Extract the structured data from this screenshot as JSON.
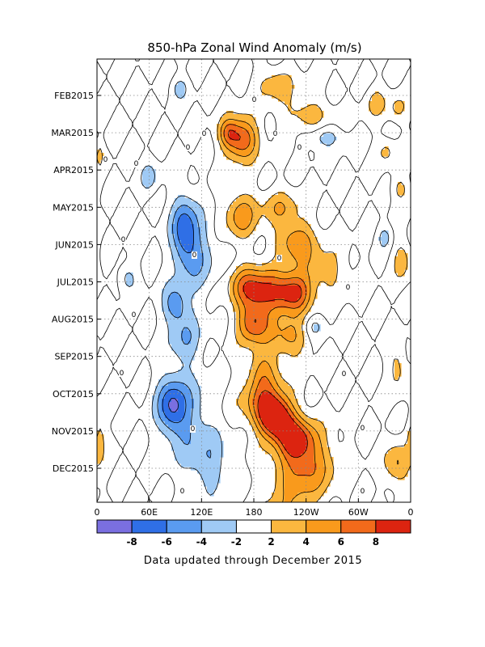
{
  "chart_data": {
    "type": "heatmap",
    "title": "850-hPa Zonal Wind Anomaly (m/s)",
    "xlabel": "",
    "ylabel": "",
    "x_ticks": [
      "0",
      "60E",
      "120E",
      "180",
      "120W",
      "60W",
      "0"
    ],
    "x_range_deg_east": [
      0,
      360
    ],
    "y_ticks": [
      "FEB2015",
      "MAR2015",
      "APR2015",
      "MAY2015",
      "JUN2015",
      "JUL2015",
      "AUG2015",
      "SEP2015",
      "OCT2015",
      "NOV2015",
      "DEC2015"
    ],
    "y_axis": "time, increasing downward",
    "contour_interval": 2,
    "contour_zero_label": "0",
    "grid": "dotted",
    "colorbar": {
      "ticks": [
        "-8",
        "-6",
        "-4",
        "-2",
        "2",
        "4",
        "6",
        "8"
      ],
      "bins": [
        {
          "range": "< -8",
          "color": "#7a6fe0"
        },
        {
          "range": "-8 to -6",
          "color": "#2f6fe6"
        },
        {
          "range": "-6 to -4",
          "color": "#5a9bf0"
        },
        {
          "range": "-4 to -2",
          "color": "#9fcaf5"
        },
        {
          "range": "-2 to 2",
          "color": "#ffffff"
        },
        {
          "range": "2 to 4",
          "color": "#fbb73f"
        },
        {
          "range": "4 to 6",
          "color": "#f99a1c"
        },
        {
          "range": "6 to 8",
          "color": "#f26a1b"
        },
        {
          "range": "> 8",
          "color": "#dc2410"
        }
      ]
    },
    "anomaly_features": [
      {
        "lon": 168,
        "month": "MAR2015",
        "peak": 9,
        "sign": "westerly"
      },
      {
        "lon": 164,
        "month": "MAY2015",
        "peak": 5,
        "sign": "westerly"
      },
      {
        "lon": 230,
        "month": "JUN2015",
        "peak": 6,
        "sign": "westerly"
      },
      {
        "lon": 182,
        "month": "JUL2015",
        "peak": 7,
        "sign": "westerly"
      },
      {
        "lon": 195,
        "month": "JUL2015",
        "peak": 7,
        "sign": "westerly"
      },
      {
        "lon": 228,
        "month": "JUL2015",
        "peak": 7,
        "sign": "westerly"
      },
      {
        "lon": 178,
        "month": "AUG2015",
        "peak": 8,
        "sign": "westerly"
      },
      {
        "lon": 200,
        "month": "OCT2015",
        "peak": 9,
        "sign": "westerly"
      },
      {
        "lon": 225,
        "month": "NOV2015",
        "peak": 9,
        "sign": "westerly"
      },
      {
        "lon": 100,
        "month": "JUN2015",
        "peak": -7,
        "sign": "easterly"
      },
      {
        "lon": 85,
        "month": "OCT2015",
        "peak": -7,
        "sign": "easterly"
      },
      {
        "lon": 260,
        "month": "MAR2015",
        "peak": -3,
        "sign": "easterly"
      }
    ],
    "note": "Data updated through December 2015"
  },
  "colors": {
    "grid": "#888888",
    "contour": "#000000",
    "frame": "#000000"
  }
}
